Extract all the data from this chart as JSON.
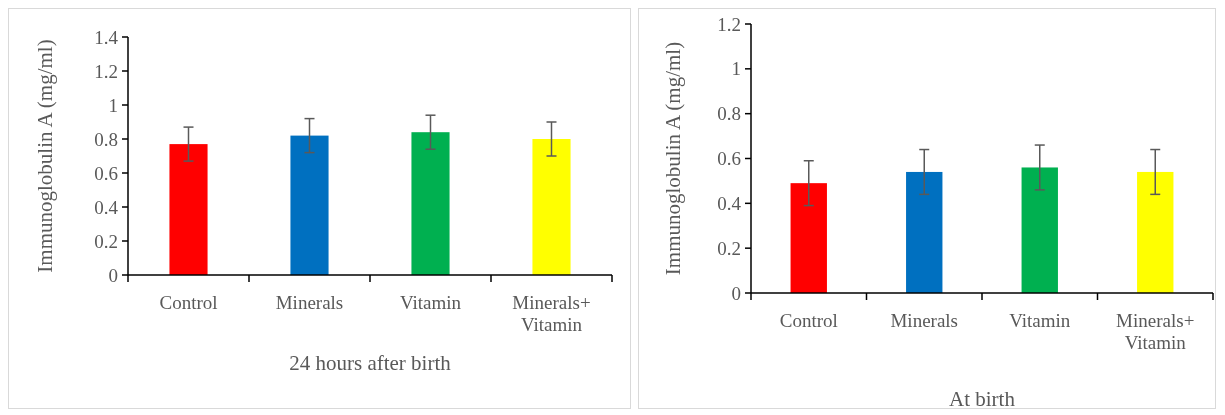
{
  "chart_data": [
    {
      "type": "bar",
      "xlabel": "24 hours after birth",
      "ylabel": "Immunoglobulin A (mg/ml)",
      "categories": [
        "Control",
        "Minerals",
        "Vitamin",
        "Minerals+ Vitamin"
      ],
      "values": [
        0.77,
        0.82,
        0.84,
        0.8
      ],
      "colors": [
        "#ff0000",
        "#0070c0",
        "#00b050",
        "#ffff00"
      ],
      "errors": [
        0.1,
        0.1,
        0.1,
        0.1
      ],
      "ylim": [
        0,
        1.4
      ],
      "yticks": [
        0,
        0.2,
        0.4,
        0.6,
        0.8,
        1,
        1.2,
        1.4
      ],
      "grid": false
    },
    {
      "type": "bar",
      "xlabel": "At birth",
      "ylabel": "Immunoglobulin A (mg/ml)",
      "categories": [
        "Control",
        "Minerals",
        "Vitamin",
        "Minerals+ Vitamin"
      ],
      "values": [
        0.49,
        0.54,
        0.56,
        0.54
      ],
      "colors": [
        "#ff0000",
        "#0070c0",
        "#00b050",
        "#ffff00"
      ],
      "errors": [
        0.1,
        0.1,
        0.1,
        0.1
      ],
      "ylim": [
        0,
        1.2
      ],
      "yticks": [
        0,
        0.2,
        0.4,
        0.6,
        0.8,
        1,
        1.2
      ],
      "grid": false
    }
  ]
}
